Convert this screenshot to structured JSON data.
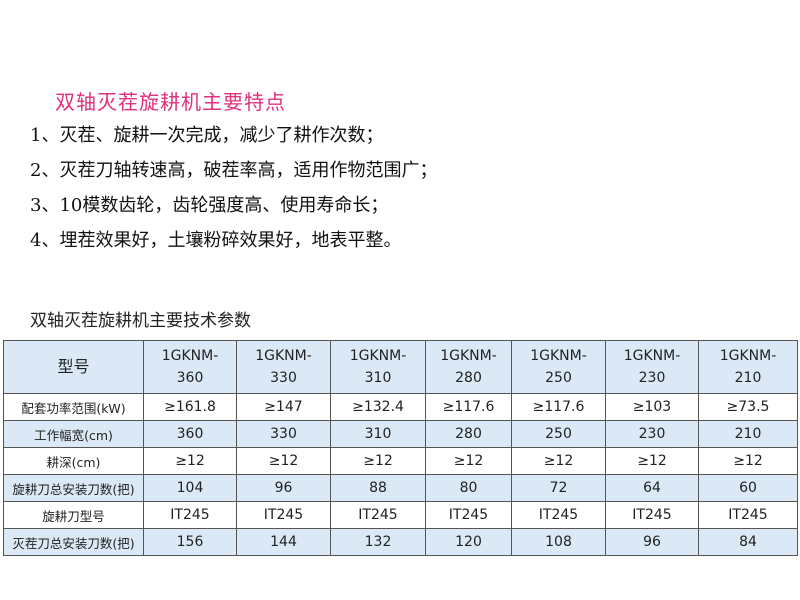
{
  "features": {
    "title": "双轴灭茬旋耕机主要特点",
    "items": [
      "1、灭茬、旋耕一次完成，减少了耕作次数；",
      "2、灭茬刀轴转速高，破茬率高，适用作物范围广；",
      "3、10模数齿轮，齿轮强度高、使用寿命长；",
      "4、埋茬效果好，土壤粉碎效果好，地表平整。"
    ]
  },
  "specs": {
    "title": "双轴灭茬旋耕机主要技术参数",
    "header_label": "型号",
    "models": [
      [
        "1GKNM-",
        "360"
      ],
      [
        "1GKNM-",
        "330"
      ],
      [
        "1GKNM-",
        "310"
      ],
      [
        "1GKNM-",
        "280"
      ],
      [
        "1GKNM-",
        "250"
      ],
      [
        "1GKNM-",
        "230"
      ],
      [
        "1GKNM-",
        "210"
      ]
    ],
    "rows": [
      {
        "label": "配套功率范围(kW)",
        "values": [
          "≥161.8",
          "≥147",
          "≥132.4",
          "≥117.6",
          "≥117.6",
          "≥103",
          "≥73.5"
        ]
      },
      {
        "label": "工作幅宽(cm)",
        "values": [
          "360",
          "330",
          "310",
          "280",
          "250",
          "230",
          "210"
        ]
      },
      {
        "label": "耕深(cm)",
        "values": [
          "≥12",
          "≥12",
          "≥12",
          "≥12",
          "≥12",
          "≥12",
          "≥12"
        ]
      },
      {
        "label": "旋耕刀总安装刀数(把)",
        "values": [
          "104",
          "96",
          "88",
          "80",
          "72",
          "64",
          "60"
        ]
      },
      {
        "label": "旋耕刀型号",
        "values": [
          "IT245",
          "IT245",
          "IT245",
          "IT245",
          "IT245",
          "IT245",
          "IT245"
        ]
      },
      {
        "label": "灭茬刀总安装刀数(把)",
        "values": [
          "156",
          "144",
          "132",
          "120",
          "108",
          "96",
          "84"
        ]
      }
    ]
  },
  "colors": {
    "title": "#e0307f",
    "row_blue": "#dbe9f6",
    "border": "#555555"
  }
}
